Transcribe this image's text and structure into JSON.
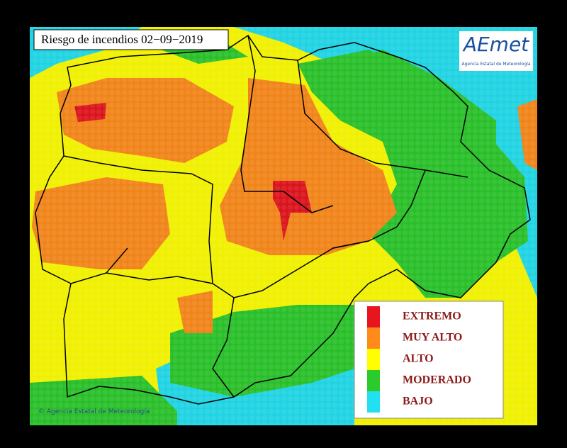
{
  "header": {
    "title": "Riesgo de incendios 02−09−2019"
  },
  "logo": {
    "text": "AEmet",
    "subtitle": "Agencia Estatal de Meteorología"
  },
  "legend": {
    "items": [
      "EXTREMO",
      "MUY ALTO",
      "ALTO",
      "MODERADO",
      "BAJO"
    ]
  },
  "footer": {
    "copyright": "© Agencia Estatal de Meteorología"
  }
}
